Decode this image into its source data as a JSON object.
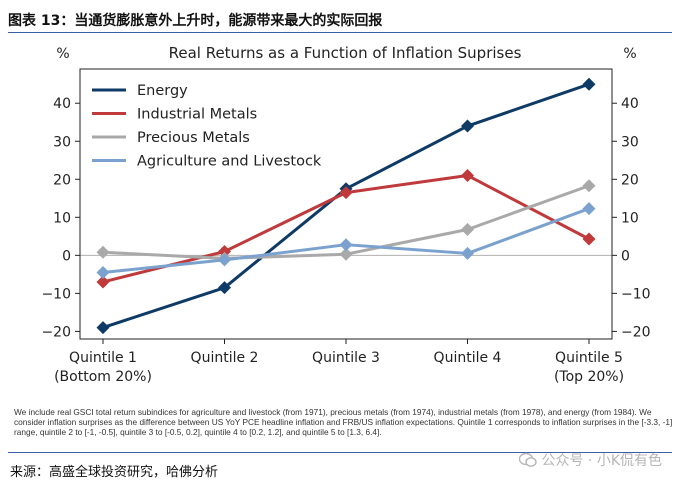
{
  "figure_title": "图表 13：当通货膨胀意外上升时，能源带来最大的实际回报",
  "note": "We include real GSCI total return subindices for agriculture and livestock (from 1971), precious metals (from 1974), industrial metals (from 1978), and energy (from 1984). We consider inflation surprises as the difference between US YoY PCE headline inflation and FRB/US inflation expectations. Quintile 1 corresponds to inflation surprises in the [-3.3, -1] range, quintile 2 to [-1, -0.5], quintile 3 to [-0.5, 0.2], quintile 4 to [0.2, 1.2], and quintile 5 to [1.3, 6.4].",
  "source": "来源：高盛全球投资研究，哈佛分析",
  "watermark": "公众号 · 小K侃有色",
  "colors": {
    "energy": "#0e3a66",
    "industrial": "#c0393b",
    "precious": "#a9a9a9",
    "agriculture": "#7ba2cf",
    "zero_line": "#b0b0b0"
  },
  "chart_data": {
    "type": "line",
    "title": "Real Returns as a Function of Inflation Suprises",
    "ylabel_left": "%",
    "ylabel_right": "%",
    "ylim": [
      -22,
      49
    ],
    "yticks": [
      -20,
      -10,
      0,
      10,
      20,
      30,
      40
    ],
    "categories": [
      [
        "Quintile 1",
        "(Bottom 20%)"
      ],
      [
        "Quintile 2"
      ],
      [
        "Quintile 3"
      ],
      [
        "Quintile 4"
      ],
      [
        "Quintile 5",
        "(Top 20%)"
      ]
    ],
    "legend_position": "top-left",
    "series": [
      {
        "name": "Energy",
        "color": "#0e3a66",
        "values": [
          -19,
          -8.5,
          17.5,
          34,
          45
        ]
      },
      {
        "name": "Industrial Metals",
        "color": "#c0393b",
        "values": [
          -7,
          1,
          16.5,
          21,
          4.3
        ]
      },
      {
        "name": "Precious Metals",
        "color": "#a9a9a9",
        "values": [
          0.8,
          -0.8,
          0.3,
          6.8,
          18.3
        ]
      },
      {
        "name": "Agriculture and Livestock",
        "color": "#7ba2cf",
        "values": [
          -4.5,
          -1.2,
          2.8,
          0.5,
          12.3
        ]
      }
    ]
  }
}
